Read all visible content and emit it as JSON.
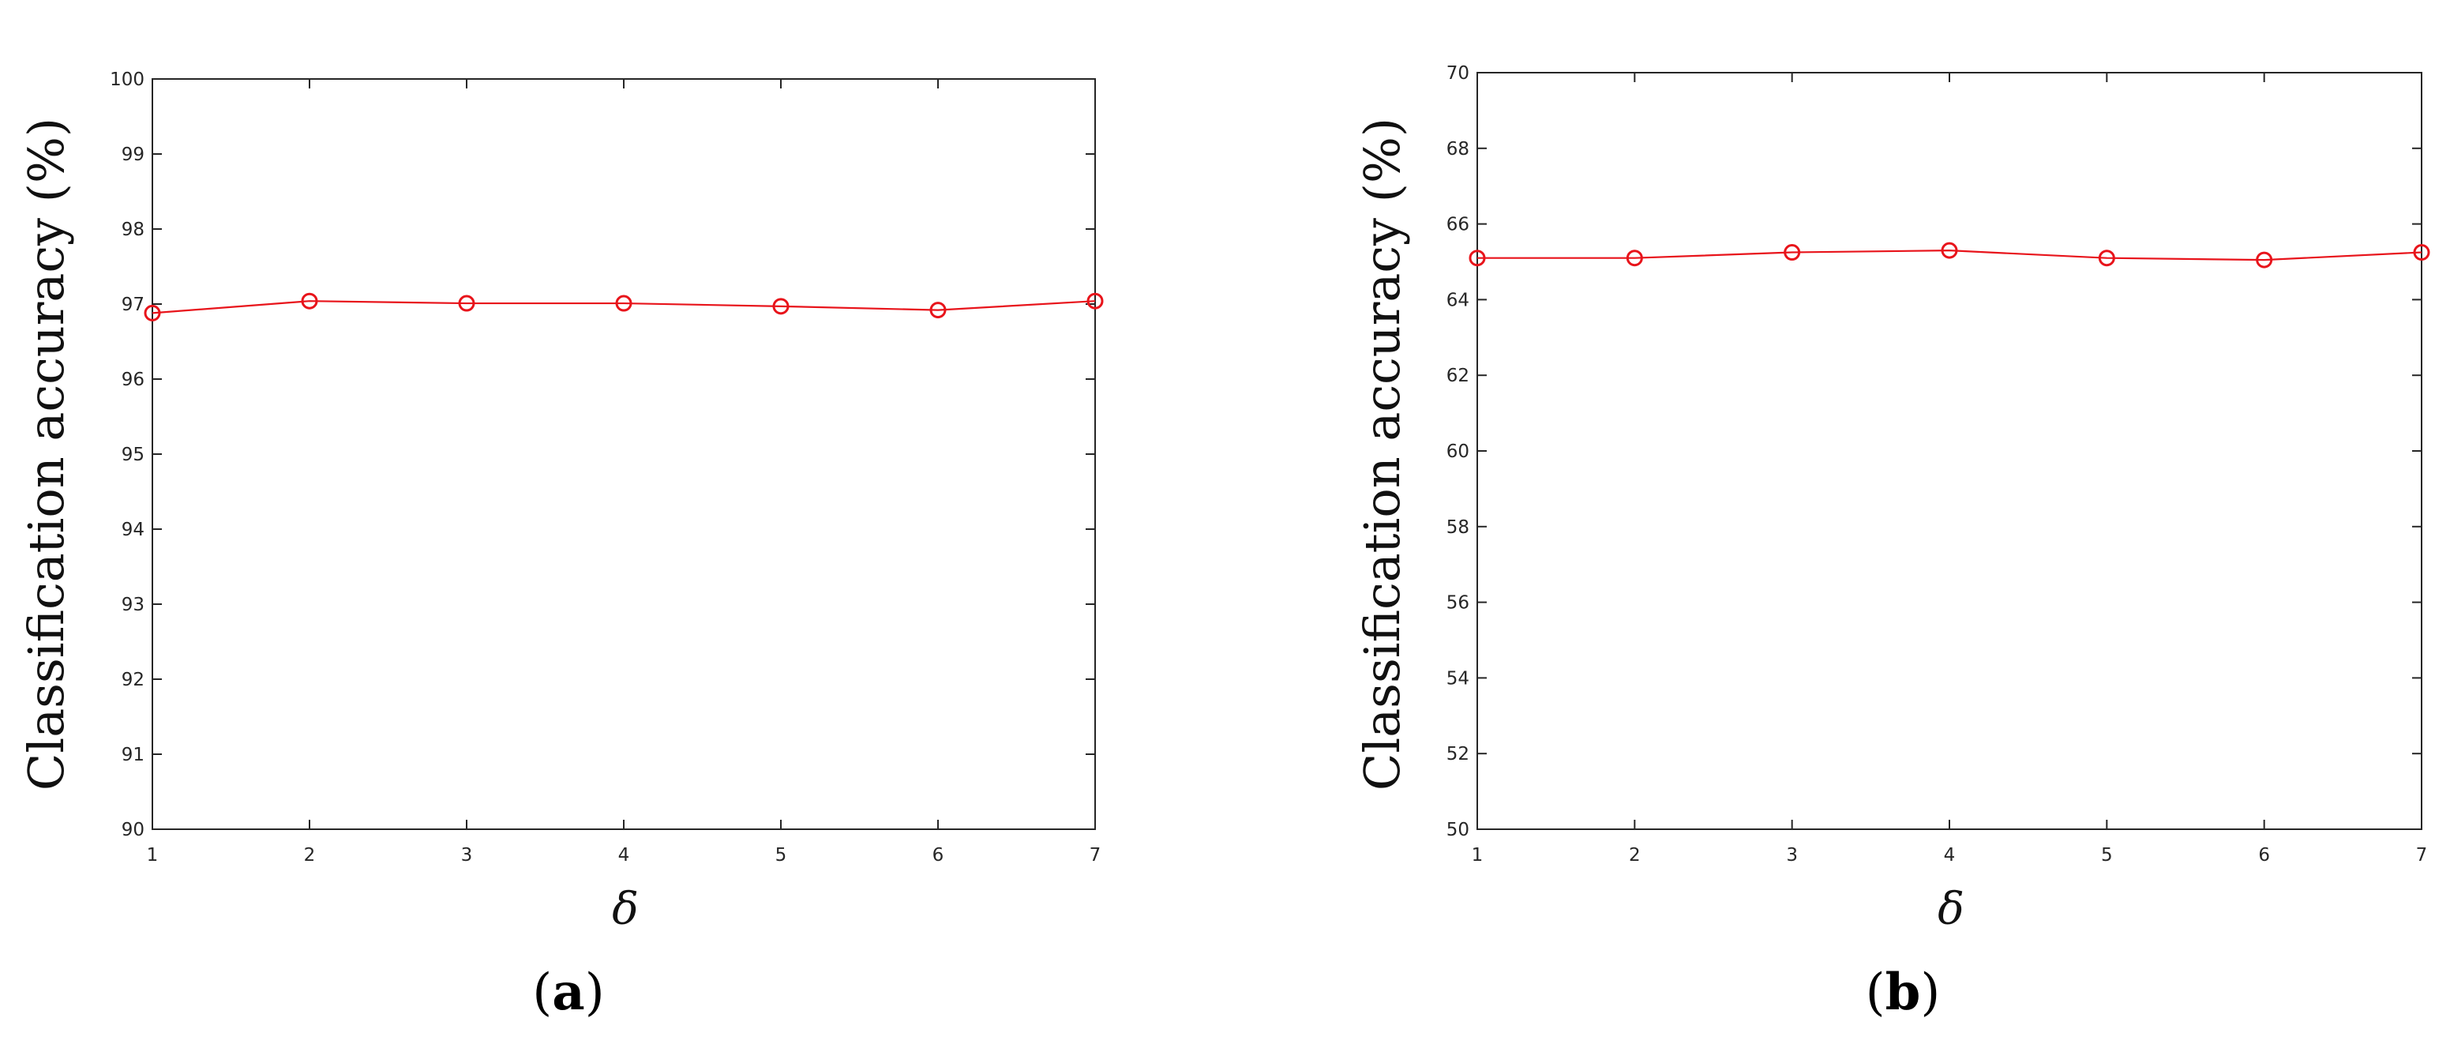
{
  "chart_data": [
    {
      "type": "line",
      "panel_label": "a",
      "xlabel": "δ",
      "ylabel": "Classification accuracy (%)",
      "x": [
        1,
        2,
        3,
        4,
        5,
        6,
        7
      ],
      "xlim": [
        1,
        7
      ],
      "ylim": [
        90,
        100
      ],
      "x_ticks": [
        "1",
        "2",
        "3",
        "4",
        "5",
        "6",
        "7"
      ],
      "y_ticks": [
        "90",
        "91",
        "92",
        "93",
        "94",
        "95",
        "96",
        "97",
        "98",
        "99",
        "100"
      ],
      "grid": false,
      "legend": "none",
      "series": [
        {
          "values": [
            96.88,
            97.04,
            97.01,
            97.01,
            96.97,
            96.92,
            97.04
          ],
          "color": "#e8141b",
          "marker": "circle"
        }
      ]
    },
    {
      "type": "line",
      "panel_label": "b",
      "xlabel": "δ",
      "ylabel": "Classification accuracy (%)",
      "x": [
        1,
        2,
        3,
        4,
        5,
        6,
        7
      ],
      "xlim": [
        1,
        7
      ],
      "ylim": [
        50,
        70
      ],
      "x_ticks": [
        "1",
        "2",
        "3",
        "4",
        "5",
        "6",
        "7"
      ],
      "y_ticks": [
        "50",
        "52",
        "54",
        "56",
        "58",
        "60",
        "62",
        "64",
        "66",
        "68",
        "70"
      ],
      "grid": false,
      "legend": "none",
      "series": [
        {
          "values": [
            65.1,
            65.1,
            65.25,
            65.3,
            65.1,
            65.05,
            65.25
          ],
          "color": "#e8141b",
          "marker": "circle"
        }
      ]
    }
  ]
}
